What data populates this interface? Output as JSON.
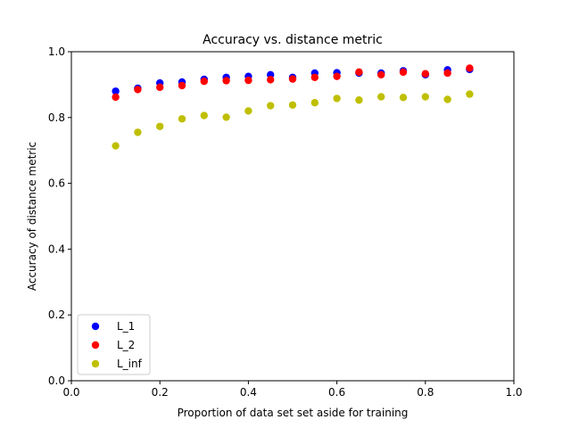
{
  "chart_data": {
    "type": "scatter",
    "title": "Accuracy vs. distance metric",
    "xlabel": "Proportion of data set set aside for training",
    "ylabel": "Accuracy of distance metric",
    "xlim": [
      0.0,
      1.0
    ],
    "ylim": [
      0.0,
      1.0
    ],
    "xticks": [
      "0.0",
      "0.2",
      "0.4",
      "0.6",
      "0.8",
      "1.0"
    ],
    "yticks": [
      "0.0",
      "0.2",
      "0.4",
      "0.6",
      "0.8",
      "1.0"
    ],
    "grid": false,
    "legend_position": "lower-left",
    "x": [
      0.1,
      0.15,
      0.2,
      0.25,
      0.3,
      0.35,
      0.4,
      0.45,
      0.5,
      0.55,
      0.6,
      0.65,
      0.7,
      0.75,
      0.8,
      0.85,
      0.9
    ],
    "series": [
      {
        "name": "L_1",
        "color": "#0000ff",
        "values": [
          0.88,
          0.889,
          0.905,
          0.908,
          0.916,
          0.922,
          0.925,
          0.93,
          0.922,
          0.935,
          0.936,
          0.935,
          0.935,
          0.942,
          0.93,
          0.945,
          0.946
        ]
      },
      {
        "name": "L_2",
        "color": "#ff0000",
        "values": [
          0.862,
          0.885,
          0.892,
          0.897,
          0.91,
          0.912,
          0.913,
          0.915,
          0.917,
          0.922,
          0.925,
          0.938,
          0.93,
          0.938,
          0.933,
          0.935,
          0.95
        ]
      },
      {
        "name": "L_inf",
        "color": "#bfbf00",
        "values": [
          0.714,
          0.755,
          0.773,
          0.796,
          0.806,
          0.801,
          0.82,
          0.836,
          0.838,
          0.845,
          0.858,
          0.853,
          0.863,
          0.861,
          0.863,
          0.855,
          0.871
        ]
      }
    ]
  }
}
